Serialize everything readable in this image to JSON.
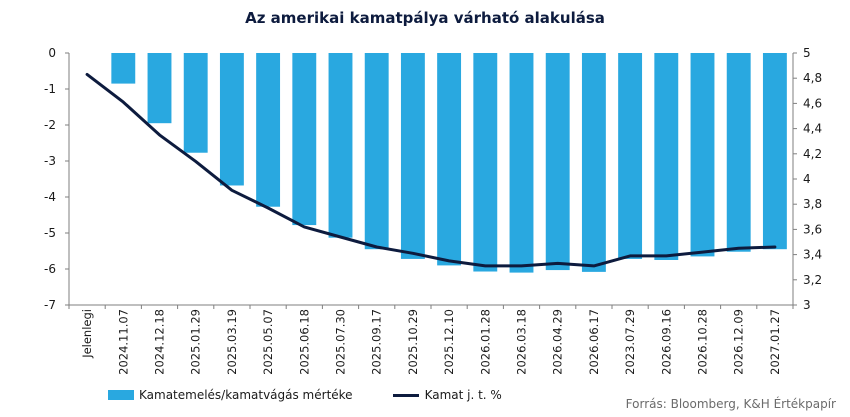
{
  "chart_data": {
    "type": "bar+line",
    "title": "Az amerikai kamatpálya várható alakulása",
    "categories": [
      "Jelenlegi",
      "2024.11.07",
      "2024.12.18",
      "2025.01.29",
      "2025.03.19",
      "2025.05.07",
      "2025.06.18",
      "2025.07.30",
      "2025.09.17",
      "2025.10.29",
      "2025.12.10",
      "2026.01.28",
      "2026.03.18",
      "2026.04.29",
      "2026.06.17",
      "2023.07.29",
      "2026.09.16",
      "2026.10.28",
      "2026.12.09",
      "2027.01.27"
    ],
    "series": [
      {
        "name": "Kamatemelés/kamatvágás mértéke",
        "type": "bar",
        "axis": "left",
        "color": "#29a8e0",
        "values": [
          0,
          -0.85,
          -1.95,
          -2.77,
          -3.68,
          -4.27,
          -4.78,
          -5.13,
          -5.45,
          -5.72,
          -5.9,
          -6.07,
          -6.1,
          -6.03,
          -6.08,
          -5.72,
          -5.75,
          -5.65,
          -5.52,
          -5.45
        ]
      },
      {
        "name": "Kamat j. t. %",
        "type": "line",
        "axis": "right",
        "color": "#0d1b3e",
        "values": [
          4.83,
          4.61,
          4.35,
          4.14,
          3.91,
          3.77,
          3.62,
          3.54,
          3.46,
          3.41,
          3.35,
          3.31,
          3.31,
          3.33,
          3.31,
          3.39,
          3.39,
          3.42,
          3.45,
          3.46
        ]
      }
    ],
    "y_left": {
      "min": -7,
      "max": 0,
      "ticks": [
        "0",
        "-1",
        "-2",
        "-3",
        "-4",
        "-5",
        "-6",
        "-7"
      ]
    },
    "y_right": {
      "min": 3,
      "max": 5,
      "ticks": [
        "5",
        "4,8",
        "4,6",
        "4,4",
        "4,2",
        "4",
        "3,8",
        "3,6",
        "3,4",
        "3,2",
        "3"
      ]
    },
    "grid": false,
    "legend_position": "bottom-left"
  },
  "source": "Forrás: Bloomberg, K&H Értékpapír"
}
